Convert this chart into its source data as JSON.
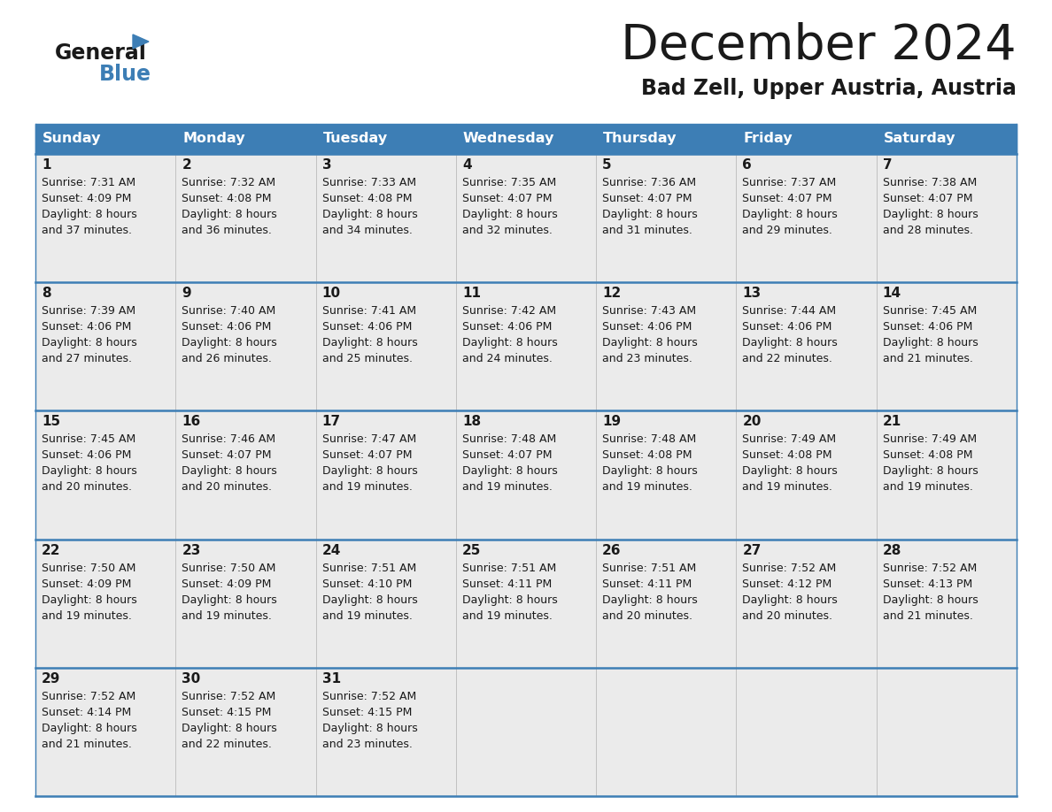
{
  "title": "December 2024",
  "subtitle": "Bad Zell, Upper Austria, Austria",
  "header_color": "#3d7eb5",
  "header_text_color": "#ffffff",
  "cell_bg_color": "#ebebeb",
  "separator_color": "#3d7eb5",
  "days_of_week": [
    "Sunday",
    "Monday",
    "Tuesday",
    "Wednesday",
    "Thursday",
    "Friday",
    "Saturday"
  ],
  "weeks": [
    [
      {
        "day": 1,
        "sunrise": "7:31 AM",
        "sunset": "4:09 PM",
        "daylight": "8 hours and 37 minutes."
      },
      {
        "day": 2,
        "sunrise": "7:32 AM",
        "sunset": "4:08 PM",
        "daylight": "8 hours and 36 minutes."
      },
      {
        "day": 3,
        "sunrise": "7:33 AM",
        "sunset": "4:08 PM",
        "daylight": "8 hours and 34 minutes."
      },
      {
        "day": 4,
        "sunrise": "7:35 AM",
        "sunset": "4:07 PM",
        "daylight": "8 hours and 32 minutes."
      },
      {
        "day": 5,
        "sunrise": "7:36 AM",
        "sunset": "4:07 PM",
        "daylight": "8 hours and 31 minutes."
      },
      {
        "day": 6,
        "sunrise": "7:37 AM",
        "sunset": "4:07 PM",
        "daylight": "8 hours and 29 minutes."
      },
      {
        "day": 7,
        "sunrise": "7:38 AM",
        "sunset": "4:07 PM",
        "daylight": "8 hours and 28 minutes."
      }
    ],
    [
      {
        "day": 8,
        "sunrise": "7:39 AM",
        "sunset": "4:06 PM",
        "daylight": "8 hours and 27 minutes."
      },
      {
        "day": 9,
        "sunrise": "7:40 AM",
        "sunset": "4:06 PM",
        "daylight": "8 hours and 26 minutes."
      },
      {
        "day": 10,
        "sunrise": "7:41 AM",
        "sunset": "4:06 PM",
        "daylight": "8 hours and 25 minutes."
      },
      {
        "day": 11,
        "sunrise": "7:42 AM",
        "sunset": "4:06 PM",
        "daylight": "8 hours and 24 minutes."
      },
      {
        "day": 12,
        "sunrise": "7:43 AM",
        "sunset": "4:06 PM",
        "daylight": "8 hours and 23 minutes."
      },
      {
        "day": 13,
        "sunrise": "7:44 AM",
        "sunset": "4:06 PM",
        "daylight": "8 hours and 22 minutes."
      },
      {
        "day": 14,
        "sunrise": "7:45 AM",
        "sunset": "4:06 PM",
        "daylight": "8 hours and 21 minutes."
      }
    ],
    [
      {
        "day": 15,
        "sunrise": "7:45 AM",
        "sunset": "4:06 PM",
        "daylight": "8 hours and 20 minutes."
      },
      {
        "day": 16,
        "sunrise": "7:46 AM",
        "sunset": "4:07 PM",
        "daylight": "8 hours and 20 minutes."
      },
      {
        "day": 17,
        "sunrise": "7:47 AM",
        "sunset": "4:07 PM",
        "daylight": "8 hours and 19 minutes."
      },
      {
        "day": 18,
        "sunrise": "7:48 AM",
        "sunset": "4:07 PM",
        "daylight": "8 hours and 19 minutes."
      },
      {
        "day": 19,
        "sunrise": "7:48 AM",
        "sunset": "4:08 PM",
        "daylight": "8 hours and 19 minutes."
      },
      {
        "day": 20,
        "sunrise": "7:49 AM",
        "sunset": "4:08 PM",
        "daylight": "8 hours and 19 minutes."
      },
      {
        "day": 21,
        "sunrise": "7:49 AM",
        "sunset": "4:08 PM",
        "daylight": "8 hours and 19 minutes."
      }
    ],
    [
      {
        "day": 22,
        "sunrise": "7:50 AM",
        "sunset": "4:09 PM",
        "daylight": "8 hours and 19 minutes."
      },
      {
        "day": 23,
        "sunrise": "7:50 AM",
        "sunset": "4:09 PM",
        "daylight": "8 hours and 19 minutes."
      },
      {
        "day": 24,
        "sunrise": "7:51 AM",
        "sunset": "4:10 PM",
        "daylight": "8 hours and 19 minutes."
      },
      {
        "day": 25,
        "sunrise": "7:51 AM",
        "sunset": "4:11 PM",
        "daylight": "8 hours and 19 minutes."
      },
      {
        "day": 26,
        "sunrise": "7:51 AM",
        "sunset": "4:11 PM",
        "daylight": "8 hours and 20 minutes."
      },
      {
        "day": 27,
        "sunrise": "7:52 AM",
        "sunset": "4:12 PM",
        "daylight": "8 hours and 20 minutes."
      },
      {
        "day": 28,
        "sunrise": "7:52 AM",
        "sunset": "4:13 PM",
        "daylight": "8 hours and 21 minutes."
      }
    ],
    [
      {
        "day": 29,
        "sunrise": "7:52 AM",
        "sunset": "4:14 PM",
        "daylight": "8 hours and 21 minutes."
      },
      {
        "day": 30,
        "sunrise": "7:52 AM",
        "sunset": "4:15 PM",
        "daylight": "8 hours and 22 minutes."
      },
      {
        "day": 31,
        "sunrise": "7:52 AM",
        "sunset": "4:15 PM",
        "daylight": "8 hours and 23 minutes."
      },
      null,
      null,
      null,
      null
    ]
  ]
}
